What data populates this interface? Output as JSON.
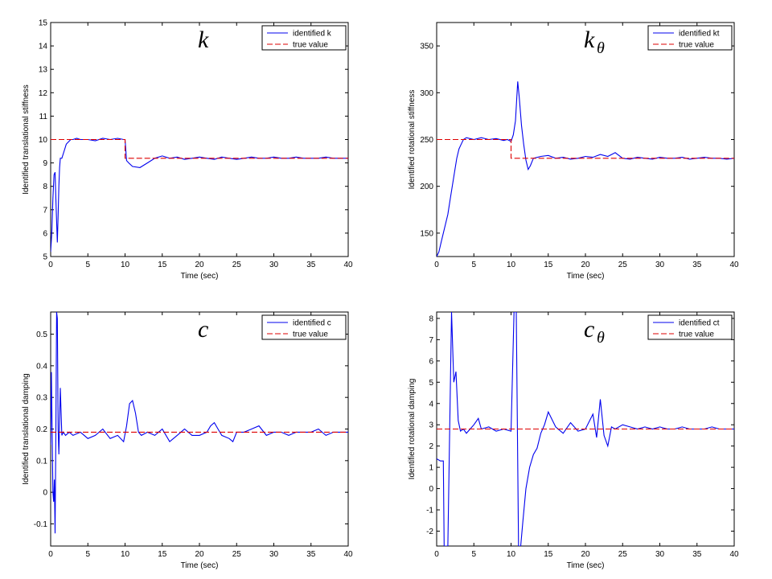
{
  "figure": {
    "background": "#ffffff",
    "colors": {
      "identified": "#0000ee",
      "true_value": "#dd0000",
      "axes": "#000000"
    }
  },
  "chart_data": [
    {
      "type": "line",
      "title_symbol": "k",
      "title_subscript": "",
      "xlabel": "Time (sec)",
      "ylabel": "Identified translational stiffness",
      "xlim": [
        0,
        40
      ],
      "ylim": [
        5,
        15
      ],
      "xticks": [
        0,
        5,
        10,
        15,
        20,
        25,
        30,
        35,
        40
      ],
      "yticks": [
        5,
        6,
        7,
        8,
        9,
        10,
        11,
        12,
        13,
        14,
        15
      ],
      "tick_labels_x": [
        "0",
        "5",
        "10",
        "15",
        "20",
        "25",
        "30",
        "35",
        "40"
      ],
      "tick_labels_y": [
        "5",
        "6",
        "7",
        "8",
        "9",
        "10",
        "11",
        "12",
        "13",
        "14",
        "15"
      ],
      "grid": false,
      "legend_position": "top-right",
      "series": [
        {
          "name": "identified k",
          "style": "solid",
          "x": [
            0,
            0.15,
            0.3,
            0.45,
            0.6,
            0.75,
            0.9,
            1.0,
            1.1,
            1.2,
            1.3,
            1.5,
            1.8,
            2.1,
            2.4,
            2.7,
            3.0,
            3.5,
            4,
            5,
            6,
            7,
            8,
            9,
            9.8,
            10.0,
            10.2,
            10.5,
            11,
            12,
            13,
            14,
            15,
            16,
            17,
            18,
            19,
            20,
            21,
            22,
            23,
            24,
            25,
            26,
            27,
            28,
            29,
            30,
            31,
            32,
            33,
            34,
            35,
            36,
            37,
            38,
            39,
            40
          ],
          "y": [
            5.2,
            6.0,
            7.5,
            8.5,
            8.6,
            7.0,
            5.6,
            6.8,
            8.0,
            8.8,
            9.2,
            9.2,
            9.5,
            9.8,
            9.9,
            10.0,
            10.0,
            10.05,
            10.0,
            10.0,
            9.95,
            10.05,
            10.0,
            10.05,
            10.0,
            10.0,
            9.1,
            9.0,
            8.85,
            8.8,
            9.0,
            9.2,
            9.3,
            9.2,
            9.25,
            9.15,
            9.2,
            9.25,
            9.2,
            9.15,
            9.25,
            9.2,
            9.15,
            9.2,
            9.25,
            9.2,
            9.2,
            9.25,
            9.2,
            9.2,
            9.25,
            9.2,
            9.2,
            9.2,
            9.25,
            9.2,
            9.2,
            9.2
          ]
        },
        {
          "name": "true value",
          "style": "dashed",
          "x": [
            0,
            10,
            10,
            40
          ],
          "y": [
            10,
            10,
            9.2,
            9.2
          ]
        }
      ]
    },
    {
      "type": "line",
      "title_symbol": "k",
      "title_subscript": "θ",
      "xlabel": "Time (sec)",
      "ylabel": "Identified rotational stiffness",
      "xlim": [
        0,
        40
      ],
      "ylim": [
        125,
        375
      ],
      "xticks": [
        0,
        5,
        10,
        15,
        20,
        25,
        30,
        35,
        40
      ],
      "yticks": [
        150,
        200,
        250,
        300,
        350
      ],
      "tick_labels_x": [
        "0",
        "5",
        "10",
        "15",
        "20",
        "25",
        "30",
        "35",
        "40"
      ],
      "tick_labels_y": [
        "150",
        "200",
        "250",
        "300",
        "350"
      ],
      "grid": false,
      "legend_position": "top-right",
      "series": [
        {
          "name": "identified kt",
          "style": "solid",
          "x": [
            0,
            0.3,
            0.6,
            0.9,
            1.2,
            1.5,
            1.8,
            2.1,
            2.4,
            2.7,
            3.0,
            3.3,
            3.6,
            4,
            5,
            6,
            7,
            8,
            9,
            9.5,
            10,
            10.3,
            10.6,
            10.9,
            11.1,
            11.4,
            11.7,
            12,
            12.3,
            12.6,
            13,
            14,
            15,
            16,
            17,
            18,
            19,
            20,
            21,
            22,
            23,
            24,
            25,
            26,
            27,
            28,
            29,
            30,
            31,
            32,
            33,
            34,
            35,
            36,
            37,
            38,
            39,
            40
          ],
          "y": [
            125,
            130,
            140,
            150,
            160,
            170,
            185,
            200,
            215,
            230,
            240,
            245,
            250,
            252,
            250,
            252,
            250,
            251,
            249,
            250,
            248,
            255,
            270,
            312,
            295,
            265,
            245,
            228,
            218,
            222,
            230,
            232,
            233,
            230,
            231,
            229,
            230,
            232,
            231,
            234,
            232,
            236,
            230,
            229,
            231,
            230,
            229,
            231,
            230,
            230,
            231,
            229,
            230,
            231,
            230,
            230,
            229,
            230
          ]
        },
        {
          "name": "true value",
          "style": "dashed",
          "x": [
            0,
            10,
            10,
            40
          ],
          "y": [
            250,
            250,
            230,
            230
          ]
        }
      ]
    },
    {
      "type": "line",
      "title_symbol": "c",
      "title_subscript": "",
      "xlabel": "Time (sec)",
      "ylabel": "Identified translational damping",
      "xlim": [
        0,
        40
      ],
      "ylim": [
        -0.17,
        0.57
      ],
      "xticks": [
        0,
        5,
        10,
        15,
        20,
        25,
        30,
        35,
        40
      ],
      "yticks": [
        -0.1,
        0,
        0.1,
        0.2,
        0.3,
        0.4,
        0.5
      ],
      "tick_labels_x": [
        "0",
        "5",
        "10",
        "15",
        "20",
        "25",
        "30",
        "35",
        "40"
      ],
      "tick_labels_y": [
        "-0.1",
        "0",
        "0.1",
        "0.2",
        "0.3",
        "0.4",
        "0.5"
      ],
      "grid": false,
      "legend_position": "top-right",
      "series": [
        {
          "name": "identified c",
          "style": "solid",
          "x": [
            0,
            0.1,
            0.2,
            0.3,
            0.4,
            0.5,
            0.6,
            0.7,
            0.8,
            0.9,
            1.0,
            1.1,
            1.3,
            1.5,
            1.7,
            2.0,
            2.5,
            3,
            4,
            5,
            6,
            7,
            8,
            9,
            9.8,
            10.2,
            10.6,
            11,
            11.4,
            11.8,
            12.2,
            13,
            14,
            15,
            16,
            17,
            18,
            19,
            20,
            21,
            21.5,
            22,
            22.5,
            23,
            24,
            24.5,
            25,
            26,
            27,
            28,
            29,
            30,
            31,
            32,
            33,
            34,
            35,
            36,
            37,
            38,
            39,
            40
          ],
          "y": [
            0.15,
            0.38,
            0.2,
            0.0,
            -0.03,
            0.04,
            -0.13,
            0.2,
            0.57,
            0.55,
            0.2,
            0.12,
            0.33,
            0.18,
            0.19,
            0.18,
            0.19,
            0.18,
            0.19,
            0.17,
            0.18,
            0.2,
            0.17,
            0.18,
            0.16,
            0.21,
            0.28,
            0.29,
            0.25,
            0.19,
            0.18,
            0.19,
            0.18,
            0.2,
            0.16,
            0.18,
            0.2,
            0.18,
            0.18,
            0.19,
            0.21,
            0.22,
            0.2,
            0.18,
            0.17,
            0.16,
            0.19,
            0.19,
            0.2,
            0.21,
            0.18,
            0.19,
            0.19,
            0.18,
            0.19,
            0.19,
            0.19,
            0.2,
            0.18,
            0.19,
            0.19,
            0.19
          ]
        },
        {
          "name": "true value",
          "style": "dashed",
          "x": [
            0,
            40
          ],
          "y": [
            0.19,
            0.19
          ]
        }
      ]
    },
    {
      "type": "line",
      "title_symbol": "c",
      "title_subscript": "θ",
      "xlabel": "Time (sec)",
      "ylabel": "Identified rotational damping",
      "xlim": [
        0,
        40
      ],
      "ylim": [
        -2.7,
        8.3
      ],
      "xticks": [
        0,
        5,
        10,
        15,
        20,
        25,
        30,
        35,
        40
      ],
      "yticks": [
        -2,
        -1,
        0,
        1,
        2,
        3,
        4,
        5,
        6,
        7,
        8
      ],
      "tick_labels_x": [
        "0",
        "5",
        "10",
        "15",
        "20",
        "25",
        "30",
        "35",
        "40"
      ],
      "tick_labels_y": [
        "-2",
        "-1",
        "0",
        "1",
        "2",
        "3",
        "4",
        "5",
        "6",
        "7",
        "8"
      ],
      "grid": false,
      "legend_position": "top-right",
      "series": [
        {
          "name": "identified ct",
          "style": "solid",
          "x": [
            0,
            0.5,
            0.9,
            1.0,
            1.5,
            2.0,
            2.3,
            2.6,
            2.9,
            3.2,
            3.6,
            4,
            5,
            5.6,
            6,
            7,
            8,
            9,
            10,
            10.4,
            10.7,
            11.0,
            11.3,
            11.6,
            12.0,
            12.5,
            13,
            13.5,
            14,
            14.5,
            15,
            16,
            17,
            18,
            19,
            20,
            21,
            21.5,
            22,
            22.5,
            23,
            23.5,
            24,
            25,
            26,
            27,
            28,
            29,
            30,
            31,
            32,
            33,
            34,
            35,
            36,
            37,
            38,
            39,
            40
          ],
          "y": [
            1.4,
            1.3,
            1.3,
            -2.7,
            -2.7,
            8.3,
            5.0,
            5.5,
            3.2,
            2.7,
            2.8,
            2.6,
            3.0,
            3.3,
            2.8,
            2.9,
            2.7,
            2.8,
            2.7,
            8.3,
            8.3,
            -2.7,
            -2.7,
            -1.5,
            0.0,
            1.0,
            1.6,
            1.9,
            2.6,
            3.0,
            3.6,
            2.9,
            2.6,
            3.1,
            2.7,
            2.8,
            3.5,
            2.4,
            4.2,
            2.5,
            2.0,
            2.9,
            2.8,
            3.0,
            2.9,
            2.8,
            2.9,
            2.8,
            2.9,
            2.8,
            2.8,
            2.9,
            2.8,
            2.8,
            2.8,
            2.9,
            2.8,
            2.8,
            2.8
          ]
        },
        {
          "name": "true value",
          "style": "dashed",
          "x": [
            0,
            40
          ],
          "y": [
            2.8,
            2.8
          ]
        }
      ]
    }
  ]
}
